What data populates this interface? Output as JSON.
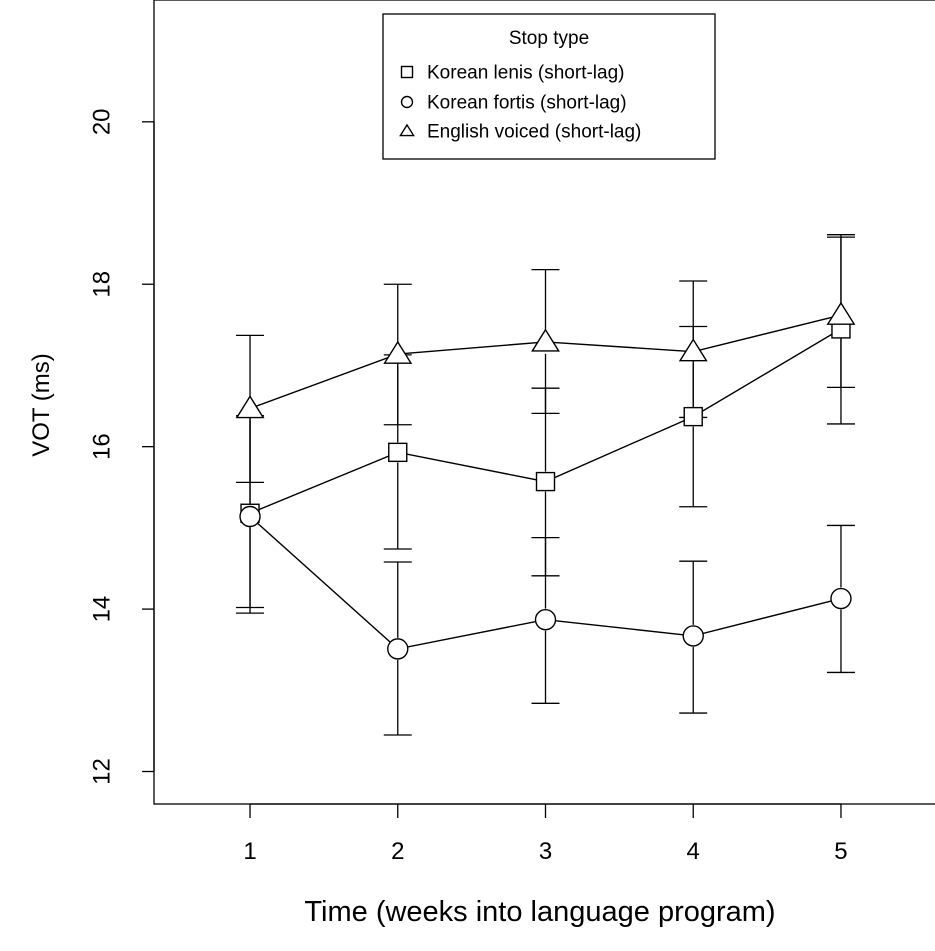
{
  "chart_data": {
    "type": "line",
    "title": "",
    "xlabel": "Time (weeks into language program)",
    "ylabel": "VOT (ms)",
    "x": [
      1,
      2,
      3,
      4,
      5
    ],
    "x_ticks": [
      "1",
      "2",
      "3",
      "4",
      "5"
    ],
    "xlim": [
      0.35,
      5.65
    ],
    "ylim": [
      11.6,
      21.5
    ],
    "y_ticks": [
      12,
      14,
      16,
      18,
      20
    ],
    "grid": false,
    "legend": {
      "title": "Stop type",
      "placement": "top-center",
      "entries": [
        "Korean lenis (short-lag)",
        "Korean fortis (short-lag)",
        "English voiced (short-lag)"
      ]
    },
    "series": [
      {
        "name": "Korean lenis (short-lag)",
        "marker": "square",
        "values": [
          15.18,
          15.93,
          15.57,
          16.37,
          17.45
        ],
        "error_low": [
          13.95,
          14.74,
          14.41,
          15.26,
          16.28
        ],
        "error_high": [
          16.38,
          17.13,
          16.72,
          17.48,
          18.58
        ]
      },
      {
        "name": "Korean fortis (short-lag)",
        "marker": "circle",
        "values": [
          15.14,
          13.51,
          13.87,
          13.67,
          14.13
        ],
        "error_low": [
          14.02,
          12.45,
          12.84,
          12.72,
          13.22
        ],
        "error_high": [
          16.38,
          14.58,
          14.88,
          14.59,
          15.03
        ]
      },
      {
        "name": "English voiced (short-lag)",
        "marker": "triangle",
        "values": [
          16.47,
          17.14,
          17.29,
          17.17,
          17.62
        ],
        "error_low": [
          15.56,
          16.27,
          16.41,
          16.36,
          16.73
        ],
        "error_high": [
          17.37,
          18.0,
          18.18,
          18.04,
          18.61
        ]
      }
    ]
  }
}
